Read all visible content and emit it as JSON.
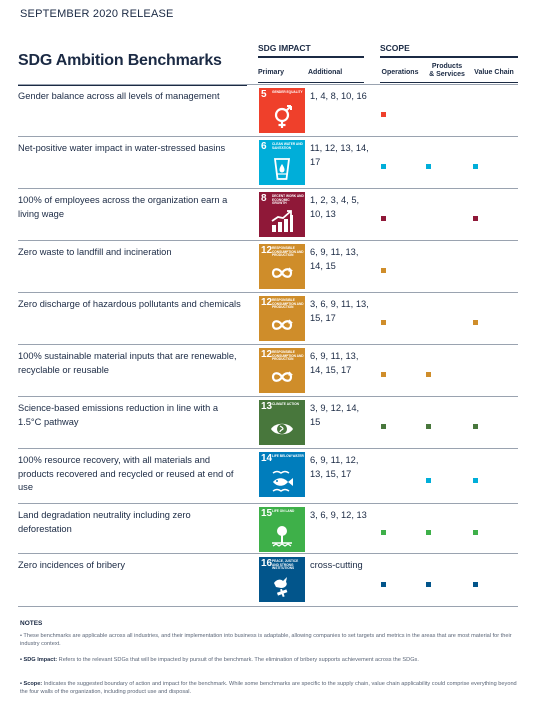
{
  "header": {
    "release": "SEPTEMBER 2020 RELEASE",
    "title": "SDG Ambition Benchmarks",
    "sdg_impact": "SDG IMPACT",
    "scope": "SCOPE",
    "primary": "Primary",
    "additional": "Additional",
    "operations": "Operations",
    "products_services": "Products\n& Services",
    "value_chain": "Value Chain"
  },
  "rows": [
    {
      "label": "Gender balance across all levels of management",
      "sdg_num": "5",
      "sdg_name": "Gender equality",
      "sdg_color": "#ef402b",
      "icon": "gender-icon",
      "additional": "1, 4, 8, 10, 16",
      "scope": [
        true,
        false,
        false
      ],
      "dot_color": "#ef402b"
    },
    {
      "label": "Net-positive water impact in water-stressed basins",
      "sdg_num": "6",
      "sdg_name": "Clean water and sanitation",
      "sdg_color": "#00aed9",
      "icon": "water-glass-icon",
      "additional": "11, 12, 13, 14, 17",
      "scope": [
        true,
        true,
        true
      ],
      "dot_color": "#00aed9"
    },
    {
      "label": "100% of employees across the organization earn a living wage",
      "sdg_num": "8",
      "sdg_name": "Decent work and economic growth",
      "sdg_color": "#8f1838",
      "icon": "growth-chart-icon",
      "additional": "1, 2, 3, 4, 5, 10, 13",
      "scope": [
        true,
        false,
        true
      ],
      "dot_color": "#8f1838"
    },
    {
      "label": "Zero waste to landfill and incineration",
      "sdg_num": "12",
      "sdg_name": "Responsible consumption and production",
      "sdg_color": "#cf8d2a",
      "icon": "infinity-icon",
      "additional": "6, 9, 11, 13, 14, 15",
      "scope": [
        true,
        false,
        false
      ],
      "dot_color": "#cf8d2a"
    },
    {
      "label": "Zero discharge of hazardous pollutants and chemicals",
      "sdg_num": "12",
      "sdg_name": "Responsible consumption and production",
      "sdg_color": "#cf8d2a",
      "icon": "infinity-icon",
      "additional": "3, 6, 9, 11, 13, 15, 17",
      "scope": [
        true,
        false,
        true
      ],
      "dot_color": "#cf8d2a"
    },
    {
      "label": "100% sustainable material inputs that are renewable, recyclable or reusable",
      "sdg_num": "12",
      "sdg_name": "Responsible consumption and production",
      "sdg_color": "#cf8d2a",
      "icon": "infinity-icon",
      "additional": "6, 9, 11, 13, 14, 15, 17",
      "scope": [
        true,
        true,
        false
      ],
      "dot_color": "#cf8d2a"
    },
    {
      "label": "Science-based emissions reduction in line with a 1.5°C pathway",
      "sdg_num": "13",
      "sdg_name": "Climate action",
      "sdg_color": "#48773c",
      "icon": "eye-globe-icon",
      "additional": "3, 9, 12, 14, 15",
      "scope": [
        true,
        true,
        true
      ],
      "dot_color": "#48773c"
    },
    {
      "label": "100% resource recovery, with all materials and products recovered and recycled or reused at end of use",
      "sdg_num": "14",
      "sdg_name": "Life below water",
      "sdg_color": "#007dbc",
      "icon": "fish-icon",
      "additional": "6, 9, 11, 12, 13, 15, 17",
      "scope": [
        false,
        true,
        true
      ],
      "dot_color": "#00aed9"
    },
    {
      "label": "Land degradation neutrality including zero deforestation",
      "sdg_num": "15",
      "sdg_name": "Life on land",
      "sdg_color": "#3eb049",
      "icon": "tree-icon",
      "additional": "3, 6, 9, 12, 13",
      "scope": [
        true,
        true,
        true
      ],
      "dot_color": "#3eb049"
    },
    {
      "label": "Zero incidences of bribery",
      "sdg_num": "16",
      "sdg_name": "Peace, justice and strong institutions",
      "sdg_color": "#02558b",
      "icon": "dove-gavel-icon",
      "additional": "cross-cutting",
      "scope": [
        true,
        true,
        true
      ],
      "dot_color": "#02558b"
    }
  ],
  "notes": {
    "title": "NOTES",
    "n1": "• These benchmarks are applicable across all industries, and their implementation into business is adaptable, allowing companies to set targets and metrics in the areas that are most material for their industry context.",
    "n2_bold": "• SDG Impact:",
    "n2": " Refers to the relevant SDGs that will be impacted by pursuit of the benchmark. The elimination of bribery supports achievement across the SDGs.",
    "n3_bold": "• Scope:",
    "n3": " Indicates the suggested boundary of action and impact for the benchmark. While some benchmarks are specific to the supply chain, value chain applicability could comprise everything beyond the four walls of the organization, including product use and disposal."
  }
}
